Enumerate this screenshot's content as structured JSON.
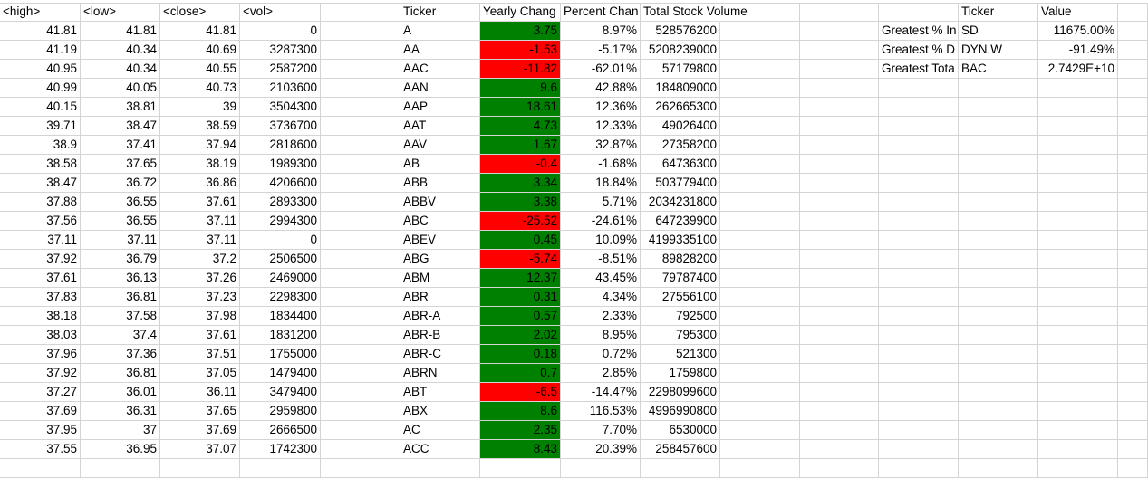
{
  "colors": {
    "positive": "#008000",
    "negative": "#ff0000",
    "grid": "#d4d4d4"
  },
  "headers": {
    "high": "<high>",
    "low": "<low>",
    "close": "<close>",
    "vol": "<vol>",
    "ticker": "Ticker",
    "yearly_change": "Yearly Chang",
    "percent_change": "Percent Chan",
    "total_volume": "Total Stock Volume",
    "summary_ticker": "Ticker",
    "summary_value": "Value"
  },
  "rows": [
    {
      "high": "41.81",
      "low": "41.81",
      "close": "41.81",
      "vol": "0",
      "ticker": "A",
      "yearly": "3.75",
      "status": "positive",
      "pct": "8.97%",
      "total": "528576200"
    },
    {
      "high": "41.19",
      "low": "40.34",
      "close": "40.69",
      "vol": "3287300",
      "ticker": "AA",
      "yearly": "-1.53",
      "status": "negative",
      "pct": "-5.17%",
      "total": "5208239000"
    },
    {
      "high": "40.95",
      "low": "40.34",
      "close": "40.55",
      "vol": "2587200",
      "ticker": "AAC",
      "yearly": "-11.82",
      "status": "negative",
      "pct": "-62.01%",
      "total": "57179800"
    },
    {
      "high": "40.99",
      "low": "40.05",
      "close": "40.73",
      "vol": "2103600",
      "ticker": "AAN",
      "yearly": "9.6",
      "status": "positive",
      "pct": "42.88%",
      "total": "184809000"
    },
    {
      "high": "40.15",
      "low": "38.81",
      "close": "39",
      "vol": "3504300",
      "ticker": "AAP",
      "yearly": "18.61",
      "status": "positive",
      "pct": "12.36%",
      "total": "262665300"
    },
    {
      "high": "39.71",
      "low": "38.47",
      "close": "38.59",
      "vol": "3736700",
      "ticker": "AAT",
      "yearly": "4.73",
      "status": "positive",
      "pct": "12.33%",
      "total": "49026400"
    },
    {
      "high": "38.9",
      "low": "37.41",
      "close": "37.94",
      "vol": "2818600",
      "ticker": "AAV",
      "yearly": "1.67",
      "status": "positive",
      "pct": "32.87%",
      "total": "27358200"
    },
    {
      "high": "38.58",
      "low": "37.65",
      "close": "38.19",
      "vol": "1989300",
      "ticker": "AB",
      "yearly": "-0.4",
      "status": "negative",
      "pct": "-1.68%",
      "total": "64736300"
    },
    {
      "high": "38.47",
      "low": "36.72",
      "close": "36.86",
      "vol": "4206600",
      "ticker": "ABB",
      "yearly": "3.34",
      "status": "positive",
      "pct": "18.84%",
      "total": "503779400"
    },
    {
      "high": "37.88",
      "low": "36.55",
      "close": "37.61",
      "vol": "2893300",
      "ticker": "ABBV",
      "yearly": "3.38",
      "status": "positive",
      "pct": "5.71%",
      "total": "2034231800"
    },
    {
      "high": "37.56",
      "low": "36.55",
      "close": "37.11",
      "vol": "2994300",
      "ticker": "ABC",
      "yearly": "-25.52",
      "status": "negative",
      "pct": "-24.61%",
      "total": "647239900"
    },
    {
      "high": "37.11",
      "low": "37.11",
      "close": "37.11",
      "vol": "0",
      "ticker": "ABEV",
      "yearly": "0.45",
      "status": "positive",
      "pct": "10.09%",
      "total": "4199335100"
    },
    {
      "high": "37.92",
      "low": "36.79",
      "close": "37.2",
      "vol": "2506500",
      "ticker": "ABG",
      "yearly": "-5.74",
      "status": "negative",
      "pct": "-8.51%",
      "total": "89828200"
    },
    {
      "high": "37.61",
      "low": "36.13",
      "close": "37.26",
      "vol": "2469000",
      "ticker": "ABM",
      "yearly": "12.37",
      "status": "positive",
      "pct": "43.45%",
      "total": "79787400"
    },
    {
      "high": "37.83",
      "low": "36.81",
      "close": "37.23",
      "vol": "2298300",
      "ticker": "ABR",
      "yearly": "0.31",
      "status": "positive",
      "pct": "4.34%",
      "total": "27556100"
    },
    {
      "high": "38.18",
      "low": "37.58",
      "close": "37.98",
      "vol": "1834400",
      "ticker": "ABR-A",
      "yearly": "0.57",
      "status": "positive",
      "pct": "2.33%",
      "total": "792500"
    },
    {
      "high": "38.03",
      "low": "37.4",
      "close": "37.61",
      "vol": "1831200",
      "ticker": "ABR-B",
      "yearly": "2.02",
      "status": "positive",
      "pct": "8.95%",
      "total": "795300"
    },
    {
      "high": "37.96",
      "low": "37.36",
      "close": "37.51",
      "vol": "1755000",
      "ticker": "ABR-C",
      "yearly": "0.18",
      "status": "positive",
      "pct": "0.72%",
      "total": "521300"
    },
    {
      "high": "37.92",
      "low": "36.81",
      "close": "37.05",
      "vol": "1479400",
      "ticker": "ABRN",
      "yearly": "0.7",
      "status": "positive",
      "pct": "2.85%",
      "total": "1759800"
    },
    {
      "high": "37.27",
      "low": "36.01",
      "close": "36.11",
      "vol": "3479400",
      "ticker": "ABT",
      "yearly": "-6.5",
      "status": "negative",
      "pct": "-14.47%",
      "total": "2298099600"
    },
    {
      "high": "37.69",
      "low": "36.31",
      "close": "37.65",
      "vol": "2959800",
      "ticker": "ABX",
      "yearly": "8.6",
      "status": "positive",
      "pct": "116.53%",
      "total": "4996990800"
    },
    {
      "high": "37.95",
      "low": "37",
      "close": "37.69",
      "vol": "2666500",
      "ticker": "AC",
      "yearly": "2.35",
      "status": "positive",
      "pct": "7.70%",
      "total": "6530000"
    },
    {
      "high": "37.55",
      "low": "36.95",
      "close": "37.07",
      "vol": "1742300",
      "ticker": "ACC",
      "yearly": "8.43",
      "status": "positive",
      "pct": "20.39%",
      "total": "258457600"
    }
  ],
  "summary": [
    {
      "label": "Greatest % In",
      "ticker": "SD",
      "value": "11675.00%"
    },
    {
      "label": "Greatest % D",
      "ticker": "DYN.W",
      "value": "-91.49%"
    },
    {
      "label": "Greatest Tota",
      "ticker": "BAC",
      "value": "2.7429E+10"
    }
  ]
}
